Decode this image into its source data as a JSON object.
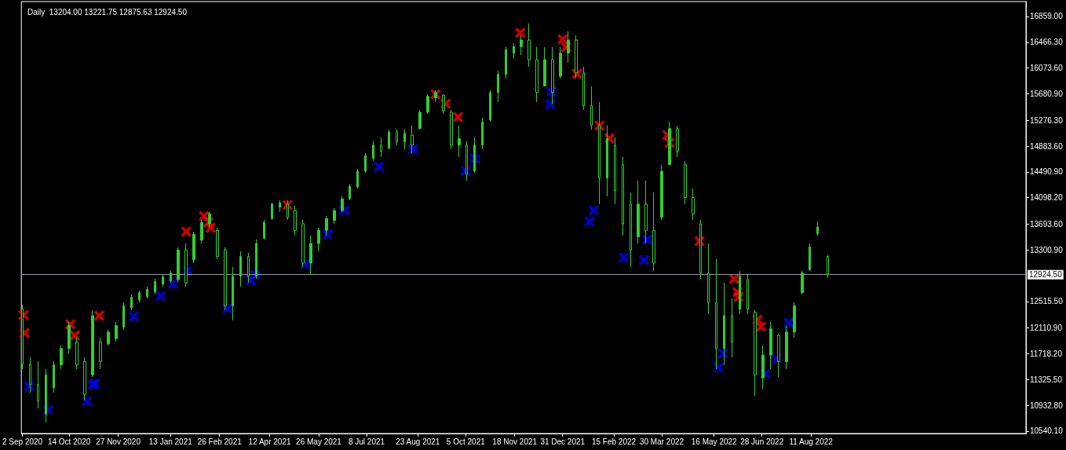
{
  "chart_data": {
    "type": "candlestick",
    "title": "Daily  13204.00 13221.75 12875.63 12924.50",
    "xlim": [
      "2020-09-01",
      "2023-02-20"
    ],
    "xticks": [
      {
        "value": "2020-09-02",
        "label": "2 Sep 2020"
      },
      {
        "value": "2020-10-14",
        "label": "14 Oct 2020"
      },
      {
        "value": "2020-11-27",
        "label": "27 Nov 2020"
      },
      {
        "value": "2021-01-13",
        "label": "13 Jan 2021"
      },
      {
        "value": "2021-02-26",
        "label": "26 Feb 2021"
      },
      {
        "value": "2021-04-12",
        "label": "12 Apr 2021"
      },
      {
        "value": "2021-05-26",
        "label": "26 May 2021"
      },
      {
        "value": "2021-07-08",
        "label": "8 Jul 2021"
      },
      {
        "value": "2021-08-23",
        "label": "23 Aug 2021"
      },
      {
        "value": "2021-10-05",
        "label": "5 Oct 2021"
      },
      {
        "value": "2021-11-18",
        "label": "18 Nov 2021"
      },
      {
        "value": "2021-12-31",
        "label": "31 Dec 2021"
      },
      {
        "value": "2022-02-15",
        "label": "15 Feb 2022"
      },
      {
        "value": "2022-03-30",
        "label": "30 Mar 2022"
      },
      {
        "value": "2022-05-16",
        "label": "16 May 2022"
      },
      {
        "value": "2022-06-28",
        "label": "28 Jun 2022"
      },
      {
        "value": "2022-08-11",
        "label": "11 Aug 2022"
      }
    ],
    "ylim": [
      10504,
      17086
    ],
    "yticks": [
      {
        "value": 10540.1,
        "label": "10540.10"
      },
      {
        "value": 10932.8,
        "label": "10932.80"
      },
      {
        "value": 11325.5,
        "label": "11325.50"
      },
      {
        "value": 11718.2,
        "label": "11718.20"
      },
      {
        "value": 12110.9,
        "label": "12110.90"
      },
      {
        "value": 12515.5,
        "label": "12515.50"
      },
      {
        "value": 13300.9,
        "label": "13300.90"
      },
      {
        "value": 13693.6,
        "label": "13693.60"
      },
      {
        "value": 14098.2,
        "label": "14098.20"
      },
      {
        "value": 14490.9,
        "label": "14490.90"
      },
      {
        "value": 14883.6,
        "label": "14883.60"
      },
      {
        "value": 15276.3,
        "label": "15276.30"
      },
      {
        "value": 15680.9,
        "label": "15680.90"
      },
      {
        "value": 16073.6,
        "label": "16073.60"
      },
      {
        "value": 16466.3,
        "label": "16466.30"
      },
      {
        "value": 16859,
        "label": "16859.00"
      }
    ],
    "ref_lines": [
      {
        "axis": "y",
        "value": 12924.5,
        "label": "12924.50",
        "color": "#8c9aa6"
      }
    ],
    "grid": false,
    "marker": "cross",
    "series": [
      {
        "color": "#32cd32",
        "x": [
          "2020-09-02",
          "2020-09-09",
          "2020-09-16",
          "2020-09-23",
          "2020-09-30",
          "2020-10-07",
          "2020-10-14",
          "2020-10-21",
          "2020-10-28",
          "2020-11-04",
          "2020-11-11",
          "2020-11-18",
          "2020-11-25",
          "2020-12-02",
          "2020-12-09",
          "2020-12-16",
          "2020-12-23",
          "2020-12-30",
          "2021-01-06",
          "2021-01-13",
          "2021-01-20",
          "2021-01-27",
          "2021-02-03",
          "2021-02-10",
          "2021-02-17",
          "2021-02-24",
          "2021-03-03",
          "2021-03-10",
          "2021-03-17",
          "2021-03-24",
          "2021-03-31",
          "2021-04-07",
          "2021-04-14",
          "2021-04-21",
          "2021-04-28",
          "2021-05-05",
          "2021-05-12",
          "2021-05-19",
          "2021-05-26",
          "2021-06-02",
          "2021-06-09",
          "2021-06-16",
          "2021-06-23",
          "2021-06-30",
          "2021-07-07",
          "2021-07-14",
          "2021-07-21",
          "2021-07-28",
          "2021-08-04",
          "2021-08-11",
          "2021-08-18",
          "2021-08-25",
          "2021-09-01",
          "2021-09-08",
          "2021-09-15",
          "2021-09-22",
          "2021-09-29",
          "2021-10-06",
          "2021-10-13",
          "2021-10-20",
          "2021-10-27",
          "2021-11-03",
          "2021-11-10",
          "2021-11-17",
          "2021-11-24",
          "2021-12-01",
          "2021-12-08",
          "2021-12-15",
          "2021-12-22",
          "2021-12-29",
          "2022-01-05",
          "2022-01-12",
          "2022-01-19",
          "2022-01-26",
          "2022-02-02",
          "2022-02-09",
          "2022-02-16",
          "2022-02-23",
          "2022-03-02",
          "2022-03-09",
          "2022-03-16",
          "2022-03-23",
          "2022-03-30",
          "2022-04-06",
          "2022-04-13",
          "2022-04-20",
          "2022-04-27",
          "2022-05-04",
          "2022-05-11",
          "2022-05-18",
          "2022-05-25",
          "2022-06-01",
          "2022-06-08",
          "2022-06-15",
          "2022-06-22",
          "2022-06-29",
          "2022-07-06",
          "2022-07-13",
          "2022-07-20",
          "2022-07-27",
          "2022-08-03",
          "2022-08-10",
          "2022-08-17",
          "2022-08-26"
        ],
        "ohlc": [
          [
            12400,
            12467,
            11486,
            11560
          ],
          [
            11560,
            11665,
            11127,
            11250
          ],
          [
            11250,
            11605,
            10887,
            11000
          ],
          [
            10800,
            11486,
            10672,
            11400
          ],
          [
            11200,
            11605,
            11127,
            11550
          ],
          [
            11550,
            11845,
            11486,
            11800
          ],
          [
            11800,
            12204,
            11725,
            12150
          ],
          [
            11900,
            11964,
            11486,
            11550
          ],
          [
            11600,
            11665,
            11007,
            11100
          ],
          [
            11400,
            12383,
            11366,
            12300
          ],
          [
            11900,
            11964,
            11486,
            11600
          ],
          [
            11870,
            12084,
            11845,
            12050
          ],
          [
            11950,
            12204,
            11905,
            12150
          ],
          [
            12120,
            12503,
            12084,
            12450
          ],
          [
            12420,
            12623,
            12383,
            12580
          ],
          [
            12540,
            12683,
            12503,
            12650
          ],
          [
            12590,
            12742,
            12563,
            12700
          ],
          [
            12660,
            12862,
            12623,
            12820
          ],
          [
            12780,
            12922,
            12742,
            12890
          ],
          [
            12830,
            12982,
            12802,
            12950
          ],
          [
            12850,
            13341,
            12802,
            13300
          ],
          [
            13300,
            13401,
            12742,
            12800
          ],
          [
            13150,
            13580,
            13102,
            13540
          ],
          [
            13450,
            13760,
            13401,
            13720
          ],
          [
            13700,
            13880,
            13640,
            13850
          ],
          [
            13600,
            13640,
            13161,
            13200
          ],
          [
            13300,
            13341,
            12383,
            12450
          ],
          [
            12450,
            13042,
            12228,
            12900
          ],
          [
            12900,
            13281,
            12742,
            13200
          ],
          [
            13200,
            13257,
            12802,
            12900
          ],
          [
            12900,
            13461,
            12862,
            13400
          ],
          [
            13480,
            13760,
            13461,
            13720
          ],
          [
            13780,
            14023,
            13760,
            14000
          ],
          [
            13950,
            14059,
            13880,
            14020
          ],
          [
            14000,
            14059,
            13760,
            13800
          ],
          [
            13900,
            13975,
            13521,
            13600
          ],
          [
            13700,
            13760,
            13042,
            13100
          ],
          [
            13100,
            13521,
            12922,
            13400
          ],
          [
            13400,
            13640,
            13281,
            13600
          ],
          [
            13600,
            13820,
            13521,
            13780
          ],
          [
            13750,
            13939,
            13700,
            13900
          ],
          [
            13900,
            14119,
            13880,
            14080
          ],
          [
            14080,
            14299,
            14059,
            14270
          ],
          [
            14260,
            14538,
            14239,
            14500
          ],
          [
            14500,
            14777,
            14478,
            14740
          ],
          [
            14700,
            14957,
            14658,
            14900
          ],
          [
            14900,
            15017,
            14718,
            14800
          ],
          [
            14850,
            15136,
            14837,
            15100
          ],
          [
            15100,
            15136,
            14897,
            14950
          ],
          [
            14950,
            15136,
            14837,
            15080
          ],
          [
            15050,
            15196,
            14777,
            14900
          ],
          [
            15150,
            15436,
            15136,
            15400
          ],
          [
            15400,
            15675,
            15376,
            15640
          ],
          [
            15620,
            15735,
            15555,
            15700
          ],
          [
            15660,
            15675,
            15376,
            15420
          ],
          [
            15400,
            15436,
            14837,
            14900
          ],
          [
            14900,
            15196,
            14718,
            15000
          ],
          [
            14900,
            14957,
            14358,
            14450
          ],
          [
            14500,
            15017,
            14478,
            14900
          ],
          [
            14900,
            15316,
            14837,
            15250
          ],
          [
            15280,
            15735,
            15256,
            15700
          ],
          [
            15700,
            16034,
            15555,
            15980
          ],
          [
            15980,
            16393,
            15915,
            16350
          ],
          [
            16300,
            16453,
            16214,
            16400
          ],
          [
            16400,
            16573,
            16274,
            16500
          ],
          [
            16500,
            16752,
            16094,
            16200
          ],
          [
            16200,
            16393,
            15555,
            15700
          ],
          [
            15800,
            16393,
            15795,
            16200
          ],
          [
            16200,
            16393,
            15520,
            15700
          ],
          [
            15950,
            16393,
            15915,
            16300
          ],
          [
            16300,
            16633,
            16154,
            16500
          ],
          [
            16500,
            16573,
            15915,
            16000
          ],
          [
            16000,
            16094,
            15436,
            15500
          ],
          [
            15500,
            15795,
            15136,
            15200
          ],
          [
            15200,
            15555,
            13999,
            14400
          ],
          [
            14400,
            15196,
            14119,
            15000
          ],
          [
            14900,
            15017,
            13999,
            14200
          ],
          [
            14600,
            14718,
            13521,
            13700
          ],
          [
            14000,
            14179,
            13042,
            13300
          ],
          [
            13500,
            14358,
            13401,
            14000
          ],
          [
            14000,
            14358,
            13401,
            13600
          ],
          [
            13600,
            14179,
            12982,
            13100
          ],
          [
            13800,
            14598,
            13760,
            14500
          ],
          [
            14600,
            15256,
            14598,
            15150
          ],
          [
            15150,
            15196,
            14718,
            14800
          ],
          [
            14600,
            14658,
            13999,
            14100
          ],
          [
            14100,
            14238,
            13760,
            13850
          ],
          [
            13700,
            13760,
            12862,
            12950
          ],
          [
            12950,
            13401,
            12324,
            12500
          ],
          [
            12500,
            13161,
            11486,
            11800
          ],
          [
            11800,
            12803,
            11545,
            12300
          ],
          [
            12300,
            12563,
            11665,
            11900
          ],
          [
            12400,
            12982,
            12324,
            12900
          ],
          [
            12850,
            12922,
            12324,
            12400
          ],
          [
            12350,
            12383,
            11078,
            11400
          ],
          [
            11350,
            11845,
            11186,
            11700
          ],
          [
            11700,
            12204,
            11486,
            12100
          ],
          [
            12000,
            12024,
            11366,
            11600
          ],
          [
            11600,
            12144,
            11486,
            12050
          ],
          [
            12050,
            12503,
            11964,
            12450
          ],
          [
            12650,
            12982,
            12623,
            12950
          ],
          [
            13000,
            13401,
            12982,
            13350
          ],
          [
            13550,
            13736,
            13521,
            13650
          ],
          [
            13204,
            13221.75,
            12875.63,
            12924.5
          ]
        ]
      },
      {
        "type": "scatter",
        "color": "#ff0000",
        "x": [
          "2020-09-03",
          "2020-09-04",
          "2020-10-15",
          "2020-10-19",
          "2020-11-10",
          "2021-01-27",
          "2021-02-12",
          "2021-02-16",
          "2021-02-18",
          "2021-04-28",
          "2021-09-08",
          "2021-09-17",
          "2021-09-28",
          "2021-11-23",
          "2021-12-31",
          "2022-01-03",
          "2022-01-13",
          "2022-02-02",
          "2022-02-11",
          "2022-04-04",
          "2022-04-06",
          "2022-05-03",
          "2022-06-03",
          "2022-06-06",
          "2022-06-07",
          "2022-06-24",
          "2022-06-27"
        ],
        "values": [
          12311,
          12036,
          12168,
          12000,
          12300,
          13580,
          13820,
          13724,
          13640,
          13987,
          15675,
          15531,
          15328,
          16609,
          16513,
          16393,
          15986,
          15196,
          15005,
          15053,
          14933,
          13437,
          12862,
          12659,
          12587,
          12240,
          12132
        ]
      },
      {
        "type": "scatter",
        "color": "#0000ff",
        "x": [
          "2020-09-08",
          "2020-09-25",
          "2020-10-30",
          "2020-11-04",
          "2020-11-06",
          "2020-12-11",
          "2021-01-04",
          "2021-01-15",
          "2021-01-28",
          "2021-03-05",
          "2021-03-26",
          "2021-03-30",
          "2021-05-14",
          "2021-06-03",
          "2021-06-18",
          "2021-07-19",
          "2021-08-19",
          "2021-10-05",
          "2021-10-13",
          "2021-12-20",
          "2021-12-21",
          "2022-01-24",
          "2022-01-28",
          "2022-02-24",
          "2022-03-14",
          "2022-03-17",
          "2022-05-20",
          "2022-05-24",
          "2022-07-01",
          "2022-07-11",
          "2022-07-22"
        ],
        "values": [
          11222,
          10863,
          10995,
          11246,
          11270,
          12288,
          12599,
          12790,
          12982,
          12407,
          12838,
          12922,
          13090,
          13544,
          13904,
          14574,
          14837,
          14502,
          14694,
          15520,
          15711,
          13736,
          13904,
          13185,
          13149,
          13461,
          11510,
          11725,
          11414,
          11641,
          12192
        ]
      }
    ]
  }
}
